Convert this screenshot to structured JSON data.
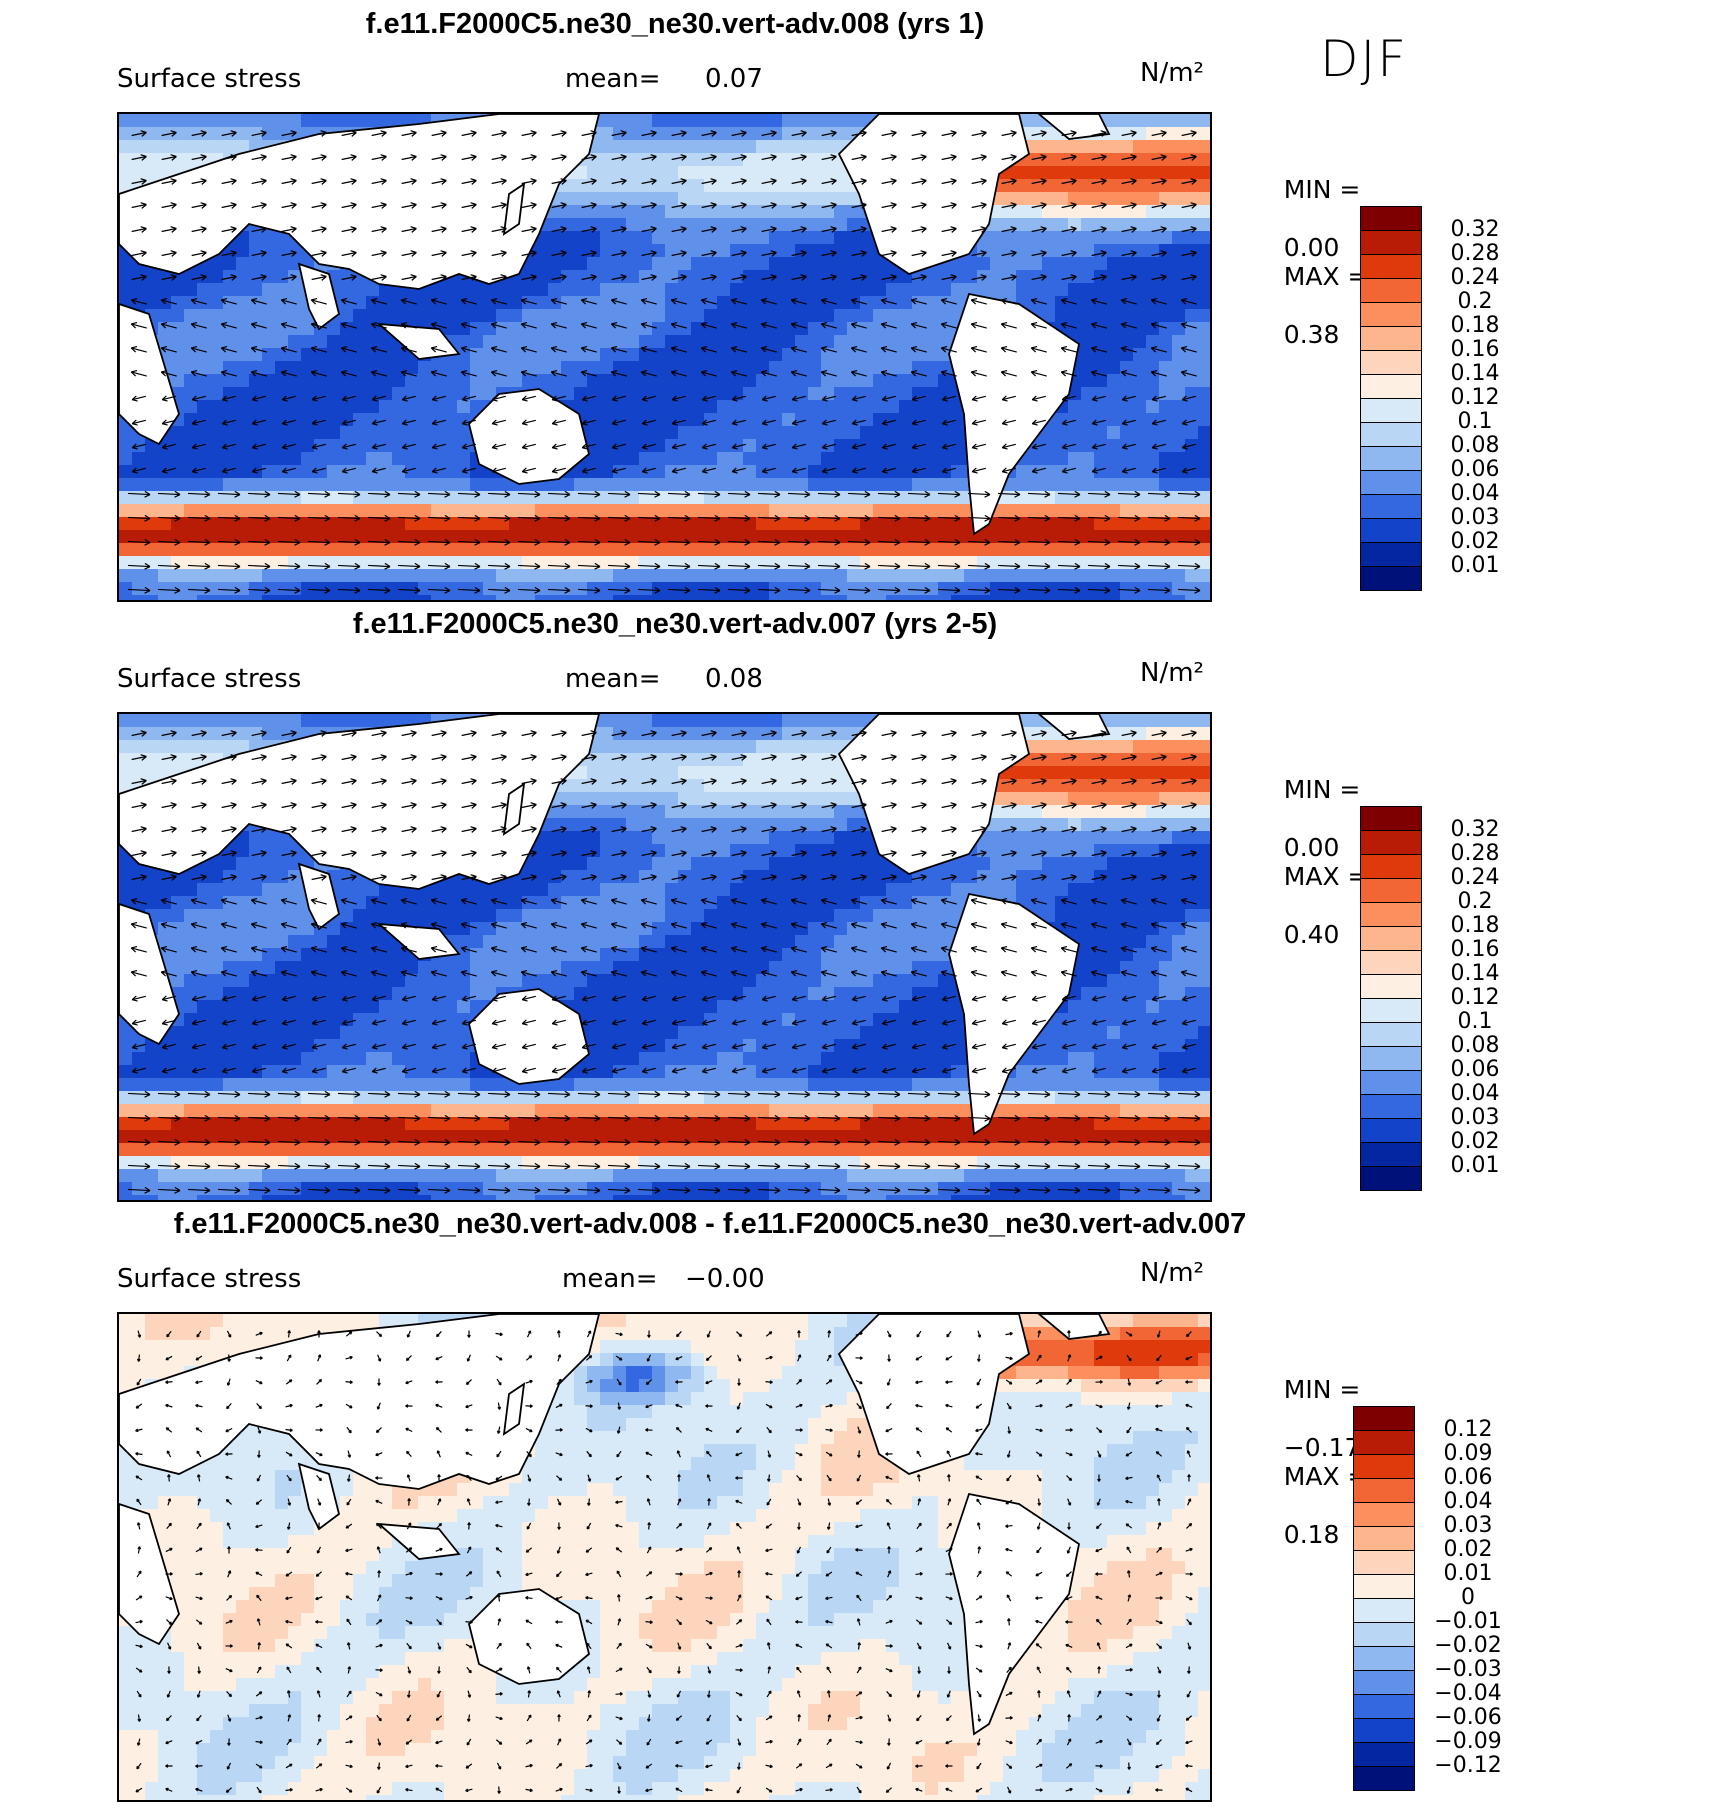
{
  "season": "DJF",
  "chart_data": [
    {
      "type": "heatmap",
      "title": "f.e11.F2000C5.ne30_ne30.vert-adv.008 (yrs 1)",
      "variable": "Surface stress",
      "mean_label": "mean=",
      "mean": "0.07",
      "units": "N/m²",
      "min_label": "MIN =",
      "min": "0.00",
      "max_label": "MAX =",
      "max": "0.38",
      "levels": [
        "0.32",
        "0.28",
        "0.24",
        "0.2",
        "0.18",
        "0.16",
        "0.14",
        "0.12",
        "0.1",
        "0.08",
        "0.06",
        "0.04",
        "0.03",
        "0.02",
        "0.01"
      ],
      "colors": [
        "#7f0000",
        "#b81c06",
        "#df3a0b",
        "#f26635",
        "#fb8f5e",
        "#fdb58e",
        "#fdd5bd",
        "#fdf0e2",
        "#d8eaf8",
        "#b9d7f5",
        "#8fb8f0",
        "#5f90ea",
        "#3468e0",
        "#1243c8",
        "#0426a0",
        "#00117a"
      ],
      "field": "regular"
    },
    {
      "type": "heatmap",
      "title": "f.e11.F2000C5.ne30_ne30.vert-adv.007 (yrs 2-5)",
      "variable": "Surface stress",
      "mean_label": "mean=",
      "mean": "0.08",
      "units": "N/m²",
      "min_label": "MIN =",
      "min": "0.00",
      "max_label": "MAX =",
      "max": "0.40",
      "levels": [
        "0.32",
        "0.28",
        "0.24",
        "0.2",
        "0.18",
        "0.16",
        "0.14",
        "0.12",
        "0.1",
        "0.08",
        "0.06",
        "0.04",
        "0.03",
        "0.02",
        "0.01"
      ],
      "colors": [
        "#7f0000",
        "#b81c06",
        "#df3a0b",
        "#f26635",
        "#fb8f5e",
        "#fdb58e",
        "#fdd5bd",
        "#fdf0e2",
        "#d8eaf8",
        "#b9d7f5",
        "#8fb8f0",
        "#5f90ea",
        "#3468e0",
        "#1243c8",
        "#0426a0",
        "#00117a"
      ],
      "field": "regular"
    },
    {
      "type": "heatmap",
      "title": "f.e11.F2000C5.ne30_ne30.vert-adv.008 - f.e11.F2000C5.ne30_ne30.vert-adv.007",
      "variable": "Surface stress",
      "mean_label": "mean=",
      "mean": "−0.00",
      "units": "N/m²",
      "min_label": "MIN =",
      "min": "−0.17",
      "max_label": "MAX =",
      "max": "0.18",
      "levels": [
        "0.12",
        "0.09",
        "0.06",
        "0.04",
        "0.03",
        "0.02",
        "0.01",
        "0",
        "−0.01",
        "−0.02",
        "−0.03",
        "−0.04",
        "−0.06",
        "−0.09",
        "−0.12"
      ],
      "colors": [
        "#7f0000",
        "#b81c06",
        "#df3a0b",
        "#f26635",
        "#fb8f5e",
        "#fdb58e",
        "#fdd5bd",
        "#fdf0e2",
        "#d8eaf8",
        "#b9d7f5",
        "#8fb8f0",
        "#5f90ea",
        "#3468e0",
        "#1243c8",
        "#0426a0",
        "#00117a"
      ],
      "field": "diff"
    }
  ]
}
